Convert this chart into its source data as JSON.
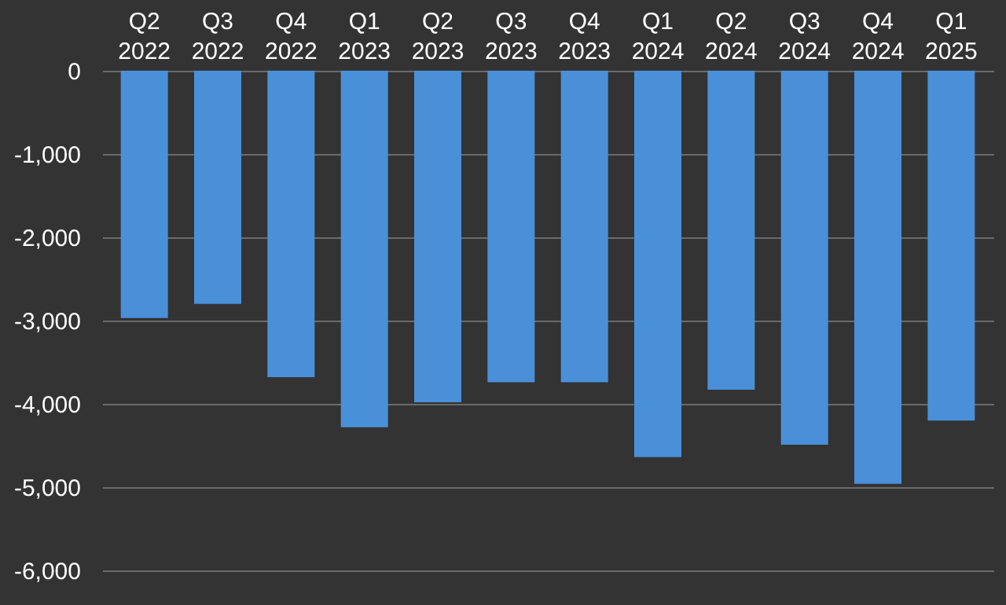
{
  "chart_data": {
    "type": "bar",
    "categories": [
      "Q2 2022",
      "Q3 2022",
      "Q4 2022",
      "Q1 2023",
      "Q2 2023",
      "Q3 2023",
      "Q4 2023",
      "Q1 2024",
      "Q2 2024",
      "Q3 2024",
      "Q4 2024",
      "Q1 2025"
    ],
    "values": [
      -2970,
      -2800,
      -3680,
      -4280,
      -3980,
      -3740,
      -3740,
      -4640,
      -3830,
      -4490,
      -4960,
      -4200
    ],
    "color": "#4a90d9",
    "ylim": [
      -6000,
      0
    ],
    "yticks": [
      {
        "value": -6000,
        "label": "-6,000"
      },
      {
        "value": -5000,
        "label": "-5,000"
      },
      {
        "value": -4000,
        "label": "-4,000"
      },
      {
        "value": -3000,
        "label": "-3,000"
      },
      {
        "value": -2000,
        "label": "-2,000"
      },
      {
        "value": -1000,
        "label": "-1,000"
      },
      0
    ],
    "grid": "y"
  }
}
